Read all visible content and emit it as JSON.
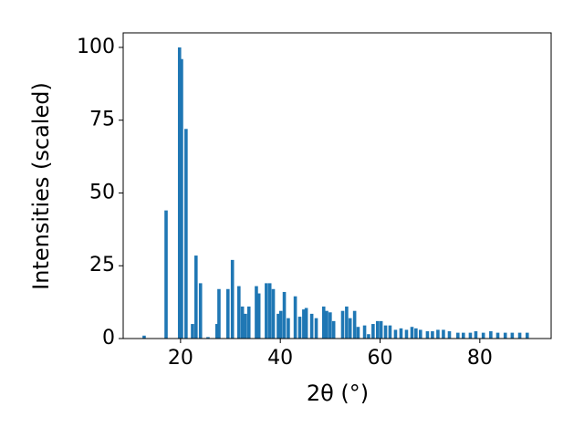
{
  "chart_data": {
    "type": "bar",
    "x_label": "2θ (°)",
    "y_label": "Intensities (scaled)",
    "x": [
      12.7,
      17.1,
      19.8,
      20.2,
      21.1,
      22.4,
      23.1,
      24.0,
      25.5,
      27.3,
      27.7,
      29.5,
      30.4,
      31.7,
      32.4,
      33.0,
      33.7,
      35.2,
      35.7,
      37.2,
      37.9,
      38.6,
      39.6,
      40.1,
      40.8,
      41.6,
      43.0,
      43.9,
      44.7,
      45.2,
      46.3,
      47.2,
      48.7,
      49.3,
      50.0,
      50.7,
      52.5,
      53.3,
      54.0,
      54.9,
      55.6,
      56.9,
      57.7,
      58.6,
      59.5,
      60.2,
      61.1,
      62.0,
      63.1,
      64.2,
      65.3,
      66.4,
      67.2,
      68.1,
      69.5,
      70.5,
      71.6,
      72.7,
      73.9,
      75.6,
      76.7,
      78.1,
      79.2,
      80.7,
      82.2,
      83.6,
      85.1,
      86.5,
      88.0,
      89.5
    ],
    "values": [
      1,
      44,
      100,
      96,
      72,
      5,
      28.5,
      19,
      0.5,
      5,
      17,
      17,
      27,
      18,
      11,
      8.5,
      11,
      18,
      15.5,
      19,
      19,
      17,
      8.5,
      9.5,
      16,
      7,
      14.5,
      7.5,
      10,
      10.5,
      8.5,
      7,
      11,
      9.5,
      9,
      6,
      9.5,
      11,
      7,
      9.5,
      4,
      4.5,
      1.5,
      5,
      6,
      6,
      4.5,
      4.5,
      3,
      3.5,
      3,
      4,
      3.5,
      3,
      2.5,
      2.5,
      3,
      3,
      2.5,
      2,
      2,
      2,
      2.5,
      2,
      2.5,
      2,
      2,
      2,
      2,
      2
    ],
    "color": "#1f77b4",
    "xlim": [
      8.5,
      94.3
    ],
    "xticks": [
      20,
      40,
      60,
      80
    ],
    "ylim": [
      0,
      105
    ],
    "yticks": [
      0,
      25,
      50,
      75,
      100
    ]
  }
}
